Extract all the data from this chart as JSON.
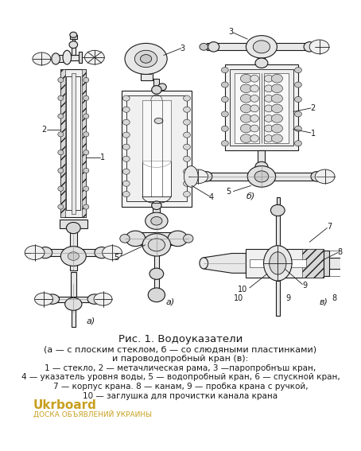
{
  "bg_color": "#ffffff",
  "fig_width": 4.54,
  "fig_height": 5.67,
  "dpi": 100,
  "title_line": "Рис. 1. Водоуказатели",
  "subtitle_line1": "(а — с плоским стеклом, б — со слюдяными пластинками)",
  "subtitle_line2": "и пароводопробный кран (в):",
  "legend_line1": "1 — стекло, 2 — метачлическая рама, 3 —паропробнъш кран,",
  "legend_line2": "4 — указатель уровня воды, 5 — водопробный кран, 6 — спускной кран,",
  "legend_line3": "7 — корпус крана. 8 — канам, 9 — пробка крана с ручкой,",
  "legend_line4": "10 — заглушка для прочистки канала крана",
  "watermark_color": "#c8a020",
  "watermark_text1": "Ukrboard",
  "watermark_text2": "ДОСКА ОБЪЯВЛЕНИЙ УКРАИНЫ",
  "text_color": "#1a1a1a",
  "font_size_title": 9.5,
  "font_size_legend": 8.0,
  "font_size_watermark": 11,
  "font_size_watermark2": 6.5,
  "label_a": "а)",
  "label_b": "б)",
  "label_v": "в)"
}
